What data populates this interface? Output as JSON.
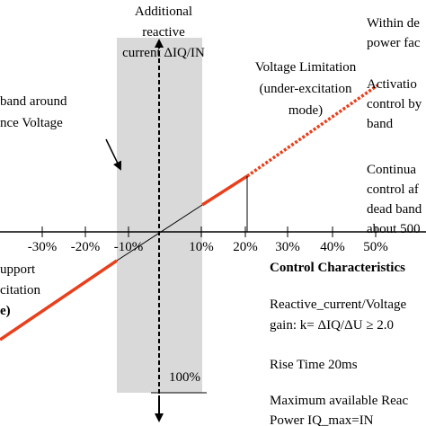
{
  "title": [
    "Additional",
    "reactive",
    "current ΔIQ/IN"
  ],
  "dead_band_label": [
    "band around",
    "nce Voltage"
  ],
  "limitation_label": [
    "Voltage Limitation",
    "(under-excitation",
    "mode)"
  ],
  "support_label": [
    "upport",
    "citation",
    "e)"
  ],
  "x_ticks": [
    "-30%",
    "-20%",
    "-10%",
    "10%",
    "20%",
    "30%",
    "40%",
    "50%"
  ],
  "y_tick": "100%",
  "right_notes": [
    [
      "Within de",
      "power fac"
    ],
    [
      "Activatio",
      "control by",
      "band"
    ],
    [
      "Continua",
      "control af",
      "dead band",
      "about 500"
    ]
  ],
  "characteristics": {
    "heading": "Control Characteristics",
    "items": [
      [
        "Reactive_current/Voltage",
        "gain: k= ΔIQ/ΔU ≥ 2.0"
      ],
      [
        "Rise Time 20ms"
      ],
      [
        "Maximum available Reac",
        "Power IQ_max=IN"
      ]
    ]
  }
}
